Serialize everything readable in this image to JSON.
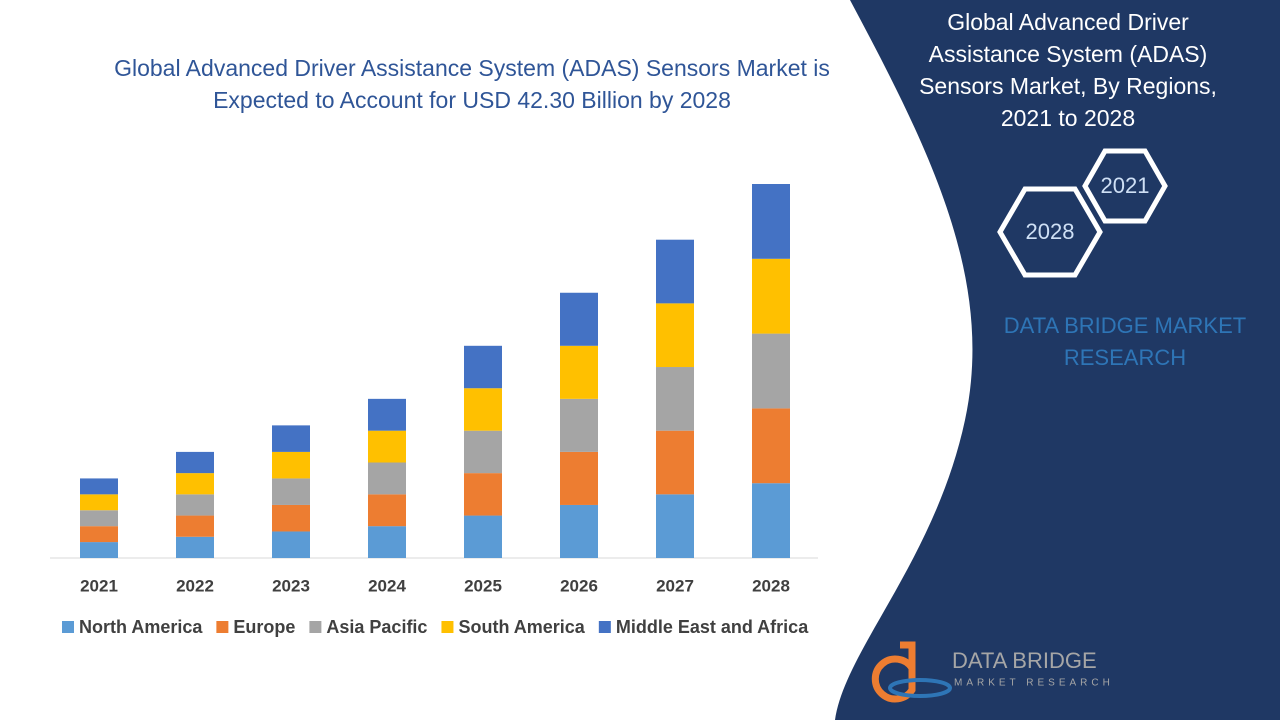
{
  "chart_data": {
    "type": "stacked-bar",
    "title": "Global Advanced Driver Assistance System (ADAS) Sensors Market is Expected to Account for USD 42.30 Billion by 2028",
    "categories": [
      "2021",
      "2022",
      "2023",
      "2024",
      "2025",
      "2026",
      "2027",
      "2028"
    ],
    "series": [
      {
        "name": "North America",
        "color": "#5b9bd5",
        "values": [
          1.8,
          2.4,
          3.0,
          3.6,
          4.8,
          6.0,
          7.2,
          8.46
        ]
      },
      {
        "name": "Europe",
        "color": "#ed7d31",
        "values": [
          1.8,
          2.4,
          3.0,
          3.6,
          4.8,
          6.0,
          7.2,
          8.46
        ]
      },
      {
        "name": "Asia Pacific",
        "color": "#a5a5a5",
        "values": [
          1.8,
          2.4,
          3.0,
          3.6,
          4.8,
          6.0,
          7.2,
          8.46
        ]
      },
      {
        "name": "South America",
        "color": "#ffc000",
        "values": [
          1.8,
          2.4,
          3.0,
          3.6,
          4.8,
          6.0,
          7.2,
          8.46
        ]
      },
      {
        "name": "Middle East and Africa",
        "color": "#4472c4",
        "values": [
          1.8,
          2.4,
          3.0,
          3.6,
          4.8,
          6.0,
          7.2,
          8.46
        ]
      }
    ]
  },
  "sidebar": {
    "title": "Global Advanced Driver Assistance System (ADAS) Sensors Market, By Regions, 2021 to 2028",
    "hexagons": [
      "2021",
      "2028"
    ],
    "brand": "DATA BRIDGE MARKET RESEARCH",
    "logo_name": "DATA BRIDGE",
    "logo_tagline": "MARKET RESEARCH"
  }
}
